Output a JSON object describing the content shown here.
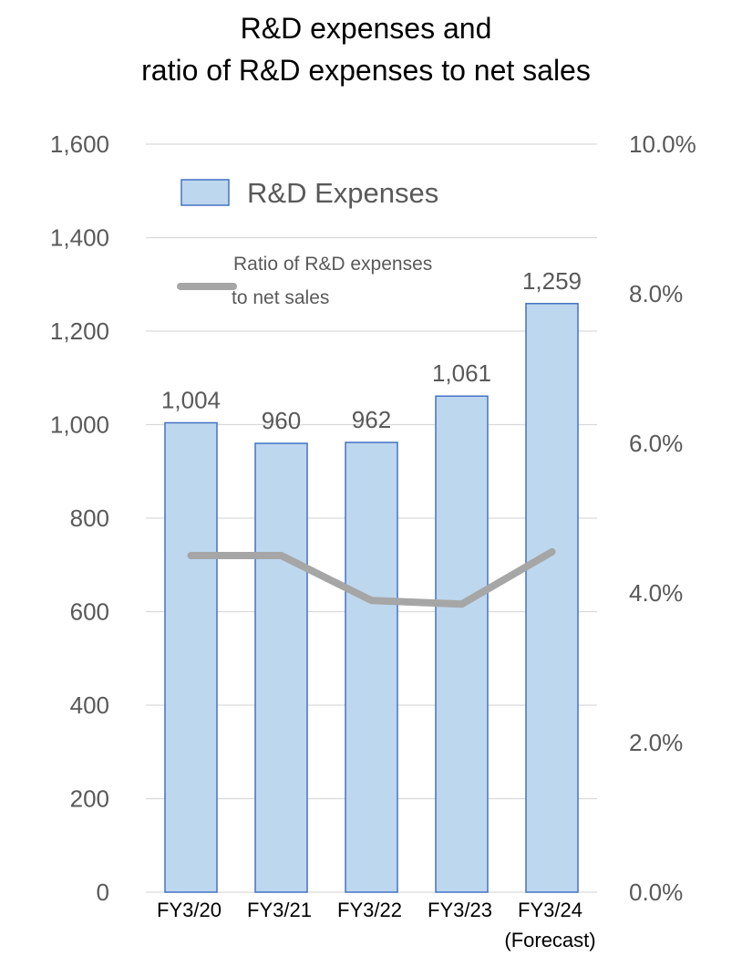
{
  "chart_data": {
    "type": "bar",
    "title_line1": "R&D expenses and",
    "title_line2": "ratio of R&D expenses to net sales",
    "categories": [
      "FY3/20",
      "FY3/21",
      "FY3/22",
      "FY3/23",
      "FY3/24"
    ],
    "category_sublabels": [
      "",
      "",
      "",
      "",
      "(Forecast)"
    ],
    "series": [
      {
        "name": "R&D Expenses",
        "type": "bar",
        "axis": "left",
        "values": [
          1004,
          960,
          962,
          1061,
          1259
        ],
        "data_labels": [
          "1,004",
          "960",
          "962",
          "1,061",
          "1,259"
        ],
        "color": "#BDD7EE",
        "border_color": "#4472C4"
      },
      {
        "name_line1": "Ratio of R&D expenses",
        "name_line2": "to net sales",
        "type": "line",
        "axis": "right",
        "values": [
          4.5,
          4.5,
          3.9,
          3.85,
          4.55
        ],
        "color": "#A6A6A6"
      }
    ],
    "y_left": {
      "ylim": [
        0,
        1600
      ],
      "ticks": [
        0,
        200,
        400,
        600,
        800,
        1000,
        1200,
        1400,
        1600
      ],
      "tick_labels": [
        "0",
        "200",
        "400",
        "600",
        "800",
        "1,000",
        "1,200",
        "1,400",
        "1,600"
      ]
    },
    "y_right": {
      "ylim": [
        0,
        10
      ],
      "ticks": [
        0,
        2,
        4,
        6,
        8,
        10
      ],
      "tick_labels": [
        "0.0%",
        "2.0%",
        "4.0%",
        "6.0%",
        "8.0%",
        "10.0%"
      ]
    },
    "grid": true,
    "gridline_color": "#D9D9D9",
    "legend_position": "top-left"
  }
}
